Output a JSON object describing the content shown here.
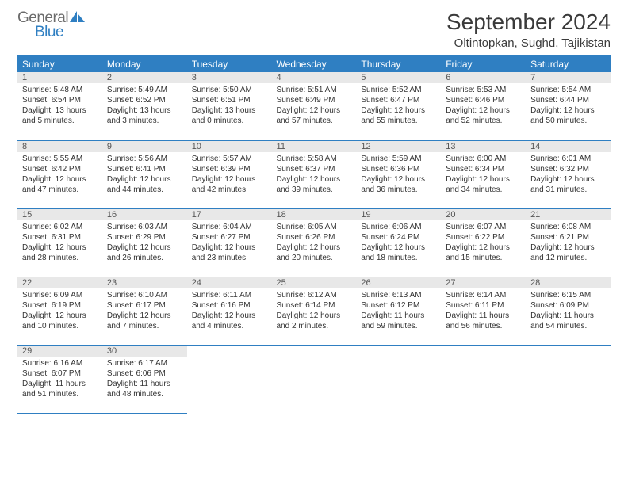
{
  "logo": {
    "word1": "General",
    "word2": "Blue"
  },
  "title": "September 2024",
  "location": "Oltintopkan, Sughd, Tajikistan",
  "colors": {
    "brand_blue": "#2f7fc2",
    "logo_gray": "#6b6b6b",
    "header_bg": "#2f7fc2",
    "header_fg": "#ffffff",
    "daynum_bg": "#e8e8e8",
    "border": "#2f7fc2",
    "text": "#333333",
    "background": "#ffffff"
  },
  "day_headers": [
    "Sunday",
    "Monday",
    "Tuesday",
    "Wednesday",
    "Thursday",
    "Friday",
    "Saturday"
  ],
  "weeks": [
    [
      {
        "n": "1",
        "sunrise": "5:48 AM",
        "sunset": "6:54 PM",
        "daylight": "13 hours and 5 minutes."
      },
      {
        "n": "2",
        "sunrise": "5:49 AM",
        "sunset": "6:52 PM",
        "daylight": "13 hours and 3 minutes."
      },
      {
        "n": "3",
        "sunrise": "5:50 AM",
        "sunset": "6:51 PM",
        "daylight": "13 hours and 0 minutes."
      },
      {
        "n": "4",
        "sunrise": "5:51 AM",
        "sunset": "6:49 PM",
        "daylight": "12 hours and 57 minutes."
      },
      {
        "n": "5",
        "sunrise": "5:52 AM",
        "sunset": "6:47 PM",
        "daylight": "12 hours and 55 minutes."
      },
      {
        "n": "6",
        "sunrise": "5:53 AM",
        "sunset": "6:46 PM",
        "daylight": "12 hours and 52 minutes."
      },
      {
        "n": "7",
        "sunrise": "5:54 AM",
        "sunset": "6:44 PM",
        "daylight": "12 hours and 50 minutes."
      }
    ],
    [
      {
        "n": "8",
        "sunrise": "5:55 AM",
        "sunset": "6:42 PM",
        "daylight": "12 hours and 47 minutes."
      },
      {
        "n": "9",
        "sunrise": "5:56 AM",
        "sunset": "6:41 PM",
        "daylight": "12 hours and 44 minutes."
      },
      {
        "n": "10",
        "sunrise": "5:57 AM",
        "sunset": "6:39 PM",
        "daylight": "12 hours and 42 minutes."
      },
      {
        "n": "11",
        "sunrise": "5:58 AM",
        "sunset": "6:37 PM",
        "daylight": "12 hours and 39 minutes."
      },
      {
        "n": "12",
        "sunrise": "5:59 AM",
        "sunset": "6:36 PM",
        "daylight": "12 hours and 36 minutes."
      },
      {
        "n": "13",
        "sunrise": "6:00 AM",
        "sunset": "6:34 PM",
        "daylight": "12 hours and 34 minutes."
      },
      {
        "n": "14",
        "sunrise": "6:01 AM",
        "sunset": "6:32 PM",
        "daylight": "12 hours and 31 minutes."
      }
    ],
    [
      {
        "n": "15",
        "sunrise": "6:02 AM",
        "sunset": "6:31 PM",
        "daylight": "12 hours and 28 minutes."
      },
      {
        "n": "16",
        "sunrise": "6:03 AM",
        "sunset": "6:29 PM",
        "daylight": "12 hours and 26 minutes."
      },
      {
        "n": "17",
        "sunrise": "6:04 AM",
        "sunset": "6:27 PM",
        "daylight": "12 hours and 23 minutes."
      },
      {
        "n": "18",
        "sunrise": "6:05 AM",
        "sunset": "6:26 PM",
        "daylight": "12 hours and 20 minutes."
      },
      {
        "n": "19",
        "sunrise": "6:06 AM",
        "sunset": "6:24 PM",
        "daylight": "12 hours and 18 minutes."
      },
      {
        "n": "20",
        "sunrise": "6:07 AM",
        "sunset": "6:22 PM",
        "daylight": "12 hours and 15 minutes."
      },
      {
        "n": "21",
        "sunrise": "6:08 AM",
        "sunset": "6:21 PM",
        "daylight": "12 hours and 12 minutes."
      }
    ],
    [
      {
        "n": "22",
        "sunrise": "6:09 AM",
        "sunset": "6:19 PM",
        "daylight": "12 hours and 10 minutes."
      },
      {
        "n": "23",
        "sunrise": "6:10 AM",
        "sunset": "6:17 PM",
        "daylight": "12 hours and 7 minutes."
      },
      {
        "n": "24",
        "sunrise": "6:11 AM",
        "sunset": "6:16 PM",
        "daylight": "12 hours and 4 minutes."
      },
      {
        "n": "25",
        "sunrise": "6:12 AM",
        "sunset": "6:14 PM",
        "daylight": "12 hours and 2 minutes."
      },
      {
        "n": "26",
        "sunrise": "6:13 AM",
        "sunset": "6:12 PM",
        "daylight": "11 hours and 59 minutes."
      },
      {
        "n": "27",
        "sunrise": "6:14 AM",
        "sunset": "6:11 PM",
        "daylight": "11 hours and 56 minutes."
      },
      {
        "n": "28",
        "sunrise": "6:15 AM",
        "sunset": "6:09 PM",
        "daylight": "11 hours and 54 minutes."
      }
    ],
    [
      {
        "n": "29",
        "sunrise": "6:16 AM",
        "sunset": "6:07 PM",
        "daylight": "11 hours and 51 minutes."
      },
      {
        "n": "30",
        "sunrise": "6:17 AM",
        "sunset": "6:06 PM",
        "daylight": "11 hours and 48 minutes."
      },
      null,
      null,
      null,
      null,
      null
    ]
  ],
  "labels": {
    "sunrise": "Sunrise:",
    "sunset": "Sunset:",
    "daylight": "Daylight:"
  }
}
